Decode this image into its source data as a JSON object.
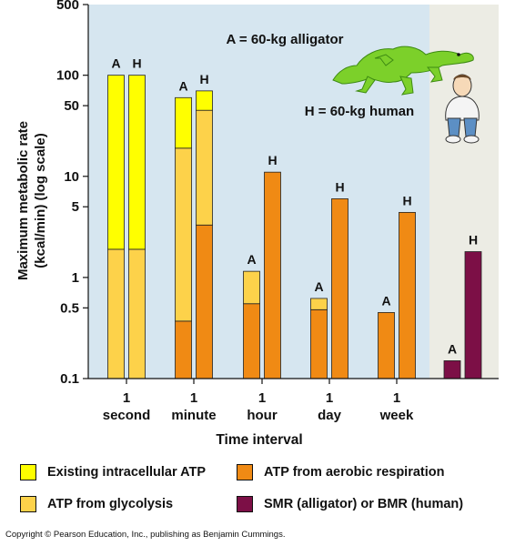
{
  "chart_data": {
    "type": "bar",
    "scale": "log",
    "ylabel_line1": "Maximum metabolic rate",
    "ylabel_line2": "(kcal/min) (log scale)",
    "xlabel": "Time interval",
    "yticks": [
      {
        "value": 0.1,
        "label": "0.1"
      },
      {
        "value": 0.5,
        "label": "0.5"
      },
      {
        "value": 1,
        "label": "1"
      },
      {
        "value": 5,
        "label": "5"
      },
      {
        "value": 10,
        "label": "10"
      },
      {
        "value": 50,
        "label": "50"
      },
      {
        "value": 100,
        "label": "100"
      },
      {
        "value": 500,
        "label": "500"
      }
    ],
    "ylim": [
      0.1,
      500
    ],
    "categories": [
      {
        "num": "1",
        "unit": "second"
      },
      {
        "num": "1",
        "unit": "minute"
      },
      {
        "num": "1",
        "unit": "hour"
      },
      {
        "num": "1",
        "unit": "day"
      },
      {
        "num": "1",
        "unit": "week"
      }
    ],
    "bars": [
      {
        "category": 0,
        "label": "A",
        "segments": [
          {
            "series": "glycolysis",
            "top": 1.9
          },
          {
            "series": "existing",
            "top": 100
          }
        ]
      },
      {
        "category": 0,
        "label": "H",
        "segments": [
          {
            "series": "glycolysis",
            "top": 1.9
          },
          {
            "series": "existing",
            "top": 100
          }
        ]
      },
      {
        "category": 1,
        "label": "A",
        "segments": [
          {
            "series": "aerobic",
            "top": 0.37
          },
          {
            "series": "glycolysis",
            "top": 19
          },
          {
            "series": "existing",
            "top": 60
          }
        ]
      },
      {
        "category": 1,
        "label": "H",
        "segments": [
          {
            "series": "aerobic",
            "top": 3.3
          },
          {
            "series": "glycolysis",
            "top": 45
          },
          {
            "series": "existing",
            "top": 70
          }
        ]
      },
      {
        "category": 2,
        "label": "A",
        "segments": [
          {
            "series": "aerobic",
            "top": 0.55
          },
          {
            "series": "glycolysis",
            "top": 1.15
          }
        ]
      },
      {
        "category": 2,
        "label": "H",
        "segments": [
          {
            "series": "aerobic",
            "top": 11
          }
        ]
      },
      {
        "category": 3,
        "label": "A",
        "segments": [
          {
            "series": "aerobic",
            "top": 0.48
          },
          {
            "series": "glycolysis",
            "top": 0.62
          }
        ]
      },
      {
        "category": 3,
        "label": "H",
        "segments": [
          {
            "series": "aerobic",
            "top": 6
          }
        ]
      },
      {
        "category": 4,
        "label": "A",
        "segments": [
          {
            "series": "aerobic",
            "top": 0.45
          }
        ]
      },
      {
        "category": 4,
        "label": "H",
        "segments": [
          {
            "series": "aerobic",
            "top": 4.4
          }
        ]
      }
    ],
    "standard_rate_bars": [
      {
        "label": "A",
        "value": 0.15
      },
      {
        "label": "H",
        "value": 1.8
      }
    ],
    "series": [
      {
        "key": "existing",
        "name": "Existing intracellular ATP",
        "color": "#ffff00"
      },
      {
        "key": "glycolysis",
        "name": "ATP from glycolysis",
        "color": "#fdd24a"
      },
      {
        "key": "aerobic",
        "name": "ATP from aerobic respiration",
        "color": "#f08a14"
      },
      {
        "key": "smr",
        "name": "SMR (alligator) or BMR (human)",
        "color": "#7c0f46"
      }
    ],
    "annotations": {
      "alligator": "A = 60-kg alligator",
      "human": "H = 60-kg human"
    },
    "grid": false,
    "legend_placement": "bottom"
  },
  "colors": {
    "plot_bg": "#d6e6f0",
    "side_bg": "#ecece4",
    "alligator": "#7cd02a",
    "alligator_dark": "#3d8a12"
  },
  "icons": {
    "alligator": "alligator-illustration",
    "human": "seated-human-illustration"
  },
  "copyright": "Copyright © Pearson Education, Inc., publishing as Benjamin Cummings."
}
